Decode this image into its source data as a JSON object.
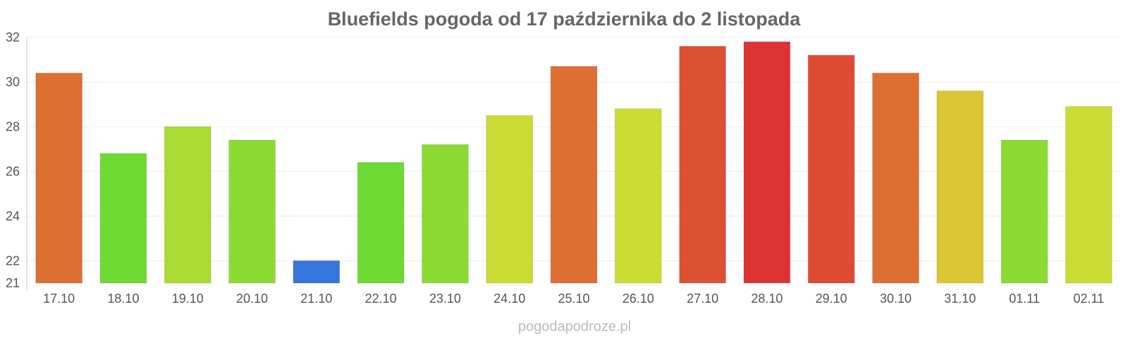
{
  "chart_data": {
    "type": "bar",
    "title": "Bluefields pogoda od 17 października do 2 listopada",
    "xlabel": "",
    "ylabel": "",
    "ylim": [
      21,
      32
    ],
    "yticks": [
      21,
      22,
      24,
      26,
      28,
      30,
      32
    ],
    "grid": true,
    "categories": [
      "17.10",
      "18.10",
      "19.10",
      "20.10",
      "21.10",
      "22.10",
      "23.10",
      "24.10",
      "25.10",
      "26.10",
      "27.10",
      "28.10",
      "29.10",
      "30.10",
      "31.10",
      "01.11",
      "02.11"
    ],
    "values": [
      30.4,
      26.8,
      28.0,
      27.4,
      22.0,
      26.4,
      27.2,
      28.5,
      30.7,
      28.8,
      31.6,
      31.8,
      31.2,
      30.4,
      29.6,
      27.4,
      28.9
    ],
    "colors": [
      "#dd6f33",
      "#6ddb33",
      "#a9db33",
      "#8cdb33",
      "#3476db",
      "#6ddb33",
      "#8cdb33",
      "#cbdb33",
      "#dd6f33",
      "#cbdb33",
      "#dd5133",
      "#dd3333",
      "#dd4b33",
      "#dd6f33",
      "#dbc633",
      "#8cdb33",
      "#cbdb33"
    ]
  },
  "watermark": "pogodapodroze.pl"
}
